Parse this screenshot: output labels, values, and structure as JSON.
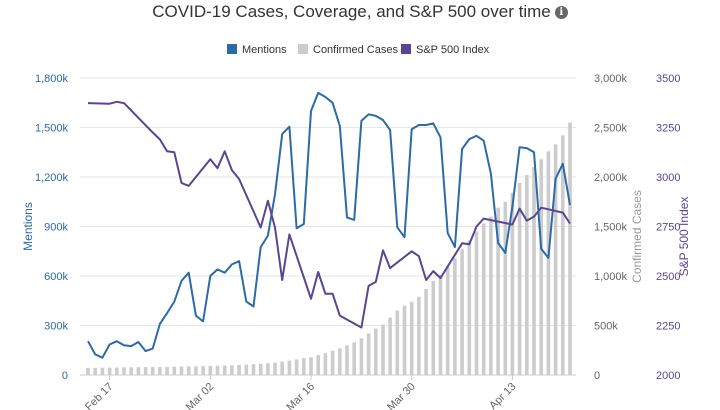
{
  "title": "COVID-19 Cases, Coverage, and S&P 500 over time",
  "info_icon": "info-icon",
  "colors": {
    "mentions": "#2c6aa8",
    "confirmed_cases": "#cccccc",
    "sp500": "#5a4593",
    "grid": "#e6e6e6",
    "text": "#333333"
  },
  "chart_data": {
    "type": "bar+line",
    "x_ticks": [
      "Feb 17",
      "Mar 02",
      "Mar 16",
      "Mar 30",
      "Apr 13"
    ],
    "x_tick_day_index": [
      0,
      14,
      28,
      42,
      56
    ],
    "x_range_days": [
      -3,
      64
    ],
    "legend": [
      "Mentions",
      "Confirmed Cases",
      "S&P 500 Index"
    ],
    "legend_position": "top-center",
    "grid": true,
    "axes": {
      "mentions": {
        "label": "Mentions",
        "ticks": [
          "0",
          "300k",
          "600k",
          "900k",
          "1,200k",
          "1,500k",
          "1,800k"
        ],
        "range": [
          0,
          1800000
        ]
      },
      "confirmed_cases": {
        "label": "Confirmed Cases",
        "ticks": [
          "0",
          "500k",
          "1,000k",
          "1,500k",
          "2,000k",
          "2,500k",
          "3,000k"
        ],
        "range": [
          0,
          3000000
        ]
      },
      "sp500": {
        "label": "S&P 500 Index",
        "ticks": [
          "2000",
          "2250",
          "2500",
          "2750",
          "3000",
          "3250",
          "3500"
        ],
        "range": [
          2000,
          3500
        ]
      }
    },
    "series": [
      {
        "name": "Mentions",
        "type": "line",
        "axis": "mentions",
        "points": [
          [
            -3,
            205000
          ],
          [
            -2,
            125000
          ],
          [
            -1,
            105000
          ],
          [
            0,
            185000
          ],
          [
            1,
            205000
          ],
          [
            2,
            180000
          ],
          [
            3,
            175000
          ],
          [
            4,
            200000
          ],
          [
            5,
            145000
          ],
          [
            6,
            160000
          ],
          [
            7,
            310000
          ],
          [
            8,
            375000
          ],
          [
            9,
            445000
          ],
          [
            10,
            570000
          ],
          [
            11,
            620000
          ],
          [
            12,
            360000
          ],
          [
            13,
            325000
          ],
          [
            14,
            600000
          ],
          [
            15,
            640000
          ],
          [
            16,
            620000
          ],
          [
            17,
            670000
          ],
          [
            18,
            690000
          ],
          [
            19,
            445000
          ],
          [
            20,
            415000
          ],
          [
            21,
            775000
          ],
          [
            22,
            845000
          ],
          [
            23,
            1095000
          ],
          [
            24,
            1460000
          ],
          [
            25,
            1505000
          ],
          [
            26,
            890000
          ],
          [
            27,
            915000
          ],
          [
            28,
            1600000
          ],
          [
            29,
            1710000
          ],
          [
            30,
            1685000
          ],
          [
            31,
            1650000
          ],
          [
            32,
            1510000
          ],
          [
            33,
            955000
          ],
          [
            34,
            940000
          ],
          [
            35,
            1540000
          ],
          [
            36,
            1580000
          ],
          [
            37,
            1570000
          ],
          [
            38,
            1545000
          ],
          [
            39,
            1485000
          ],
          [
            40,
            895000
          ],
          [
            41,
            835000
          ],
          [
            42,
            1490000
          ],
          [
            43,
            1515000
          ],
          [
            44,
            1515000
          ],
          [
            45,
            1525000
          ],
          [
            46,
            1440000
          ],
          [
            47,
            860000
          ],
          [
            48,
            775000
          ],
          [
            49,
            1370000
          ],
          [
            50,
            1430000
          ],
          [
            51,
            1450000
          ],
          [
            52,
            1420000
          ],
          [
            53,
            1220000
          ],
          [
            54,
            800000
          ],
          [
            55,
            740000
          ],
          [
            56,
            1020000
          ],
          [
            57,
            1380000
          ],
          [
            58,
            1375000
          ],
          [
            59,
            1350000
          ],
          [
            60,
            765000
          ],
          [
            61,
            710000
          ],
          [
            62,
            1190000
          ],
          [
            63,
            1280000
          ],
          [
            64,
            1030000
          ]
        ]
      },
      {
        "name": "Confirmed Cases",
        "type": "bar",
        "axis": "confirmed_cases",
        "points": [
          [
            -3,
            72000
          ],
          [
            -2,
            73000
          ],
          [
            -1,
            74000
          ],
          [
            0,
            75000
          ],
          [
            1,
            76000
          ],
          [
            2,
            78000
          ],
          [
            3,
            78000
          ],
          [
            4,
            79000
          ],
          [
            5,
            80000
          ],
          [
            6,
            81000
          ],
          [
            7,
            82000
          ],
          [
            8,
            83000
          ],
          [
            9,
            84000
          ],
          [
            10,
            86000
          ],
          [
            11,
            87000
          ],
          [
            12,
            88000
          ],
          [
            13,
            90000
          ],
          [
            14,
            92000
          ],
          [
            15,
            94000
          ],
          [
            16,
            95000
          ],
          [
            17,
            98000
          ],
          [
            18,
            102000
          ],
          [
            19,
            105000
          ],
          [
            20,
            109000
          ],
          [
            21,
            113000
          ],
          [
            22,
            119000
          ],
          [
            23,
            125000
          ],
          [
            24,
            135000
          ],
          [
            25,
            145000
          ],
          [
            26,
            158000
          ],
          [
            27,
            170000
          ],
          [
            28,
            180000
          ],
          [
            29,
            200000
          ],
          [
            30,
            220000
          ],
          [
            31,
            245000
          ],
          [
            32,
            270000
          ],
          [
            33,
            300000
          ],
          [
            34,
            330000
          ],
          [
            35,
            370000
          ],
          [
            36,
            420000
          ],
          [
            37,
            470000
          ],
          [
            38,
            510000
          ],
          [
            39,
            580000
          ],
          [
            40,
            650000
          ],
          [
            41,
            700000
          ],
          [
            42,
            740000
          ],
          [
            43,
            790000
          ],
          [
            44,
            870000
          ],
          [
            45,
            950000
          ],
          [
            46,
            1010000
          ],
          [
            47,
            1100000
          ],
          [
            48,
            1180000
          ],
          [
            49,
            1270000
          ],
          [
            50,
            1360000
          ],
          [
            51,
            1450000
          ],
          [
            52,
            1530000
          ],
          [
            53,
            1600000
          ],
          [
            54,
            1690000
          ],
          [
            55,
            1750000
          ],
          [
            56,
            1840000
          ],
          [
            57,
            1940000
          ],
          [
            58,
            2020000
          ],
          [
            59,
            2100000
          ],
          [
            60,
            2180000
          ],
          [
            61,
            2260000
          ],
          [
            62,
            2330000
          ],
          [
            63,
            2420000
          ],
          [
            64,
            2550000
          ]
        ]
      },
      {
        "name": "S&P 500 Index",
        "type": "line",
        "axis": "sp500",
        "points": [
          [
            -3,
            3373
          ],
          [
            0,
            3370
          ],
          [
            1,
            3380
          ],
          [
            2,
            3373
          ],
          [
            6,
            3225
          ],
          [
            7,
            3190
          ],
          [
            8,
            3130
          ],
          [
            9,
            3125
          ],
          [
            10,
            2970
          ],
          [
            11,
            2955
          ],
          [
            14,
            3090
          ],
          [
            15,
            3045
          ],
          [
            16,
            3130
          ],
          [
            17,
            3035
          ],
          [
            18,
            2990
          ],
          [
            21,
            2745
          ],
          [
            22,
            2880
          ],
          [
            23,
            2745
          ],
          [
            24,
            2480
          ],
          [
            25,
            2710
          ],
          [
            28,
            2385
          ],
          [
            29,
            2520
          ],
          [
            30,
            2410
          ],
          [
            31,
            2410
          ],
          [
            32,
            2300
          ],
          [
            35,
            2240
          ],
          [
            36,
            2450
          ],
          [
            37,
            2470
          ],
          [
            38,
            2630
          ],
          [
            39,
            2540
          ],
          [
            42,
            2625
          ],
          [
            43,
            2600
          ],
          [
            44,
            2480
          ],
          [
            45,
            2525
          ],
          [
            46,
            2490
          ],
          [
            49,
            2665
          ],
          [
            50,
            2660
          ],
          [
            51,
            2750
          ],
          [
            52,
            2790
          ],
          [
            56,
            2760
          ],
          [
            57,
            2840
          ],
          [
            58,
            2780
          ],
          [
            59,
            2800
          ],
          [
            60,
            2845
          ],
          [
            63,
            2820
          ],
          [
            64,
            2765
          ]
        ]
      }
    ]
  }
}
